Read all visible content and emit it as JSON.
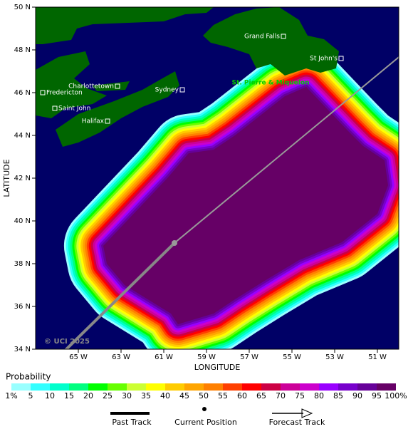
{
  "map": {
    "axes": {
      "x_label": "LONGITUDE",
      "y_label": "LATITUDE",
      "xticks": [
        {
          "value": -65,
          "label": "65 W"
        },
        {
          "value": -63,
          "label": "63 W"
        },
        {
          "value": -61,
          "label": "61 W"
        },
        {
          "value": -59,
          "label": "59 W"
        },
        {
          "value": -57,
          "label": "57 W"
        },
        {
          "value": -55,
          "label": "55 W"
        },
        {
          "value": -53,
          "label": "53 W"
        },
        {
          "value": -51,
          "label": "51 W"
        }
      ],
      "yticks": [
        {
          "value": 50,
          "label": "50 N"
        },
        {
          "value": 48,
          "label": "48 N"
        },
        {
          "value": 46,
          "label": "46 N"
        },
        {
          "value": 44,
          "label": "44 N"
        },
        {
          "value": 42,
          "label": "42 N"
        },
        {
          "value": 40,
          "label": "40 N"
        },
        {
          "value": 38,
          "label": "38 N"
        },
        {
          "value": 36,
          "label": "36 N"
        },
        {
          "value": 34,
          "label": "34 N"
        }
      ]
    },
    "places": [
      {
        "label": "Grand Falls"
      },
      {
        "label": "St John's"
      },
      {
        "label": "Charlottetown"
      },
      {
        "label": "Fredericton"
      },
      {
        "label": "Sydney"
      },
      {
        "label": "Saint John"
      },
      {
        "label": "Halifax"
      }
    ],
    "region_label": "St. Pierre & Miquelon",
    "copyright": "© UCI 2025"
  },
  "colorbar": {
    "title": "Probability",
    "labels": [
      "1%",
      "5",
      "10",
      "15",
      "20",
      "25",
      "30",
      "35",
      "40",
      "45",
      "50",
      "55",
      "60",
      "65",
      "70",
      "75",
      "80",
      "85",
      "90",
      "95",
      "100%"
    ],
    "colors": [
      "#99ffff",
      "#33ffff",
      "#00ffcc",
      "#00ff80",
      "#00ff00",
      "#66ff00",
      "#ccff33",
      "#ffff00",
      "#ffcc00",
      "#ffa500",
      "#ff8000",
      "#ff4000",
      "#ff0000",
      "#cc0044",
      "#cc0099",
      "#cc00cc",
      "#9900ff",
      "#7700cc",
      "#660099",
      "#660066"
    ]
  },
  "legend": {
    "past": "Past Track",
    "current": "Current Position",
    "forecast": "Forecast Track"
  }
}
